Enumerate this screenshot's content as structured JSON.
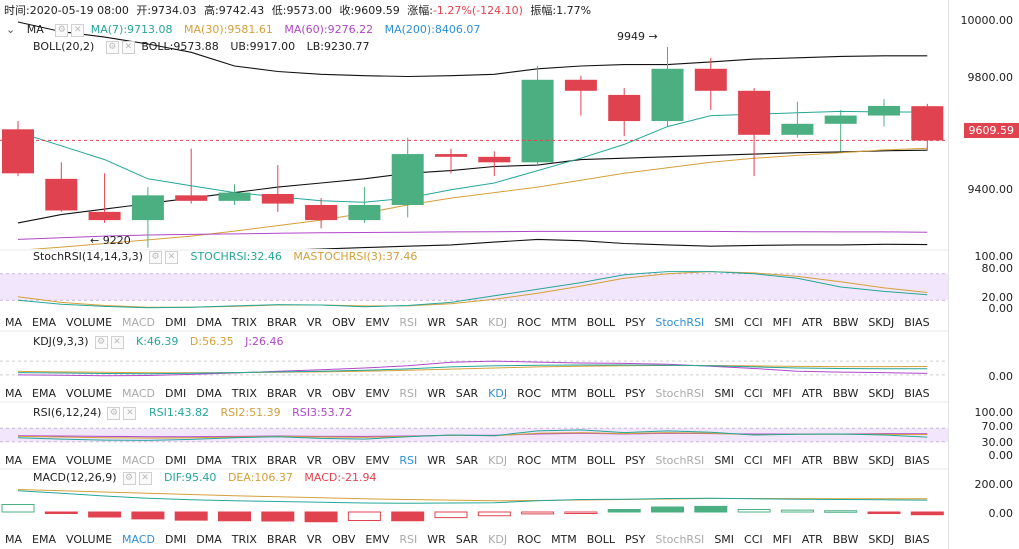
{
  "header": {
    "time_label": "时间:",
    "time": "2020-05-19 08:00",
    "open_label": "开:",
    "open": "9734.03",
    "high_label": "高:",
    "high": "9742.43",
    "low_label": "低:",
    "low": "9573.00",
    "close_label": "收:",
    "close": "9609.59",
    "change_label": "涨幅:",
    "change": "-1.27%(-124.10)",
    "amplitude_label": "振幅:",
    "amplitude": "1.77%"
  },
  "ma_line": {
    "name": "MA",
    "ma7": "MA(7):9713.08",
    "ma30": "MA(30):9581.61",
    "ma60": "MA(60):9276.22",
    "ma200": "MA(200):8406.07"
  },
  "boll_line": {
    "name": "BOLL(20,2)",
    "boll": "BOLL:9573.88",
    "ub": "UB:9917.00",
    "lb": "LB:9230.77"
  },
  "annotations": {
    "high_mark": "9949 →",
    "low_mark": "← 9220"
  },
  "price_axis": [
    "10000.00",
    "9800.00",
    "9400.00"
  ],
  "current_price": "9609.59",
  "stochrsi": {
    "title": "StochRSI(14,14,3,3)",
    "v1": "STOCHRSI:32.46",
    "v2": "MASTOCHRSI(3):37.46",
    "axis": [
      "100.00",
      "80.00",
      "20.00",
      "0.00"
    ]
  },
  "kdj": {
    "title": "KDJ(9,3,3)",
    "k": "K:46.39",
    "d": "D:56.35",
    "j": "J:26.46",
    "axis": [
      "0.00"
    ]
  },
  "rsi": {
    "title": "RSI(6,12,24)",
    "r1": "RSI1:43.82",
    "r2": "RSI2:51.39",
    "r3": "RSI3:53.72",
    "axis": [
      "100.00",
      "70.00",
      "30.00",
      "0.00"
    ]
  },
  "macd": {
    "title": "MACD(12,26,9)",
    "dif": "DIF:95.40",
    "dea": "DEA:106.37",
    "macd": "MACD:-21.94",
    "axis": [
      "200.00",
      "0.00"
    ]
  },
  "tab_labels": [
    "MA",
    "EMA",
    "VOLUME",
    "MACD",
    "DMI",
    "DMA",
    "TRIX",
    "BRAR",
    "VR",
    "OBV",
    "EMV",
    "RSI",
    "WR",
    "SAR",
    "KDJ",
    "ROC",
    "MTM",
    "BOLL",
    "PSY",
    "StochRSI",
    "SMI",
    "CCI",
    "MFI",
    "ATR",
    "BBW",
    "SKDJ",
    "BIAS"
  ],
  "tab_states": {
    "row1": {
      "active": "StochRSI",
      "dim": [
        "MACD",
        "RSI",
        "KDJ"
      ]
    },
    "row2": {
      "active": "KDJ",
      "dim": [
        "MACD",
        "RSI",
        "StochRSI"
      ]
    },
    "row3": {
      "active": "RSI",
      "dim": [
        "MACD",
        "KDJ",
        "StochRSI"
      ]
    },
    "row4": {
      "active": "MACD",
      "dim": [
        "RSI",
        "KDJ",
        "StochRSI"
      ]
    }
  },
  "colors": {
    "up": "#4caf82",
    "down": "#e0434f",
    "ma7": "#26a69a",
    "ma30": "#d4a03a",
    "ma60": "#b048c8",
    "ma200": "#2f8fd6",
    "boll": "#111111",
    "active_tab": "#2f8fd6"
  },
  "chart_data": {
    "type": "candlestick",
    "candles": [
      {
        "o": 9650,
        "h": 9680,
        "l": 9480,
        "c": 9490
      },
      {
        "o": 9470,
        "h": 9530,
        "l": 9350,
        "c": 9355
      },
      {
        "o": 9350,
        "h": 9490,
        "l": 9310,
        "c": 9320
      },
      {
        "o": 9320,
        "h": 9440,
        "l": 9220,
        "c": 9410
      },
      {
        "o": 9410,
        "h": 9580,
        "l": 9380,
        "c": 9390
      },
      {
        "o": 9390,
        "h": 9450,
        "l": 9375,
        "c": 9420
      },
      {
        "o": 9415,
        "h": 9520,
        "l": 9350,
        "c": 9380
      },
      {
        "o": 9375,
        "h": 9400,
        "l": 9290,
        "c": 9320
      },
      {
        "o": 9320,
        "h": 9440,
        "l": 9310,
        "c": 9375
      },
      {
        "o": 9375,
        "h": 9620,
        "l": 9330,
        "c": 9560
      },
      {
        "o": 9560,
        "h": 9580,
        "l": 9490,
        "c": 9550
      },
      {
        "o": 9550,
        "h": 9570,
        "l": 9480,
        "c": 9530
      },
      {
        "o": 9530,
        "h": 9880,
        "l": 9520,
        "c": 9830
      },
      {
        "o": 9830,
        "h": 9845,
        "l": 9700,
        "c": 9790
      },
      {
        "o": 9775,
        "h": 9800,
        "l": 9625,
        "c": 9680
      },
      {
        "o": 9680,
        "h": 9949,
        "l": 9660,
        "c": 9870
      },
      {
        "o": 9870,
        "h": 9910,
        "l": 9720,
        "c": 9790
      },
      {
        "o": 9790,
        "h": 9800,
        "l": 9480,
        "c": 9630
      },
      {
        "o": 9630,
        "h": 9750,
        "l": 9620,
        "c": 9670
      },
      {
        "o": 9670,
        "h": 9720,
        "l": 9570,
        "c": 9700
      },
      {
        "o": 9700,
        "h": 9760,
        "l": 9660,
        "c": 9735
      },
      {
        "o": 9734.03,
        "h": 9742.43,
        "l": 9573,
        "c": 9609.59
      }
    ],
    "ma7": [
      9640,
      9590,
      9540,
      9470,
      9445,
      9420,
      9405,
      9390,
      9385,
      9400,
      9430,
      9455,
      9500,
      9545,
      9595,
      9660,
      9700,
      9705,
      9710,
      9715,
      9713,
      9713
    ],
    "ma30": [
      9210,
      9222,
      9235,
      9248,
      9262,
      9280,
      9300,
      9320,
      9345,
      9375,
      9400,
      9420,
      9440,
      9465,
      9490,
      9510,
      9530,
      9545,
      9555,
      9565,
      9575,
      9581
    ],
    "ma60": [
      9250,
      9256,
      9262,
      9266,
      9268,
      9270,
      9272,
      9274,
      9275,
      9276,
      9277,
      9278,
      9279,
      9279,
      9279,
      9279,
      9279,
      9278,
      9278,
      9277,
      9277,
      9276
    ],
    "boll_ub": [
      10040,
      10005,
      9985,
      9960,
      9930,
      9880,
      9860,
      9850,
      9845,
      9842,
      9845,
      9850,
      9870,
      9880,
      9885,
      9885,
      9895,
      9905,
      9910,
      9915,
      9917,
      9917
    ],
    "boll_mid": [
      9310,
      9340,
      9360,
      9380,
      9400,
      9420,
      9440,
      9455,
      9470,
      9490,
      9500,
      9515,
      9520,
      9540,
      9545,
      9550,
      9555,
      9560,
      9565,
      9568,
      9572,
      9574
    ],
    "boll_lb": [
      9200,
      9195,
      9190,
      9200,
      9210,
      9212,
      9210,
      9215,
      9220,
      9225,
      9230,
      9240,
      9250,
      9245,
      9235,
      9230,
      9225,
      9228,
      9230,
      9230,
      9232,
      9231
    ],
    "ylim": [
      9215,
      10040
    ],
    "stochrsi_k": [
      20,
      11,
      6,
      3,
      4,
      7,
      10,
      9,
      5,
      8,
      15,
      30,
      45,
      60,
      78,
      85,
      85,
      80,
      70,
      50,
      40,
      32.46
    ],
    "stochrsi_d": [
      28,
      15,
      8,
      4,
      4,
      6,
      9,
      9,
      7,
      7,
      12,
      22,
      36,
      52,
      70,
      80,
      85,
      82,
      74,
      62,
      48,
      37.46
    ],
    "kdj_k": [
      30,
      28,
      26,
      25,
      27,
      30,
      33,
      36,
      40,
      46,
      55,
      60,
      62,
      63,
      63,
      62,
      60,
      55,
      50,
      48,
      47,
      46.39
    ],
    "kdj_d": [
      35,
      33,
      31,
      29,
      29,
      30,
      31,
      33,
      36,
      40,
      45,
      50,
      55,
      58,
      60,
      61,
      61,
      59,
      57,
      56,
      56,
      56.35
    ],
    "kdj_j": [
      20,
      18,
      16,
      17,
      22,
      28,
      36,
      42,
      50,
      60,
      75,
      80,
      76,
      72,
      70,
      66,
      58,
      48,
      36,
      32,
      30,
      26.46
    ],
    "rsi1": [
      42,
      38,
      35,
      34,
      37,
      42,
      45,
      40,
      38,
      45,
      50,
      48,
      62,
      65,
      57,
      62,
      58,
      50,
      52,
      53,
      50,
      43.82
    ],
    "rsi2": [
      46,
      44,
      42,
      41,
      42,
      44,
      46,
      44,
      43,
      46,
      49,
      48,
      55,
      57,
      54,
      57,
      55,
      51,
      52,
      52,
      52,
      51.39
    ],
    "rsi3": [
      48,
      47,
      46,
      45,
      45,
      46,
      47,
      46,
      46,
      47,
      49,
      49,
      53,
      55,
      53,
      55,
      54,
      53,
      53,
      53,
      54,
      53.72
    ],
    "macd_dif": [
      170,
      150,
      128,
      110,
      98,
      90,
      84,
      78,
      72,
      70,
      72,
      74,
      90,
      100,
      102,
      108,
      110,
      106,
      102,
      100,
      98,
      95.4
    ],
    "macd_dea": [
      180,
      170,
      160,
      150,
      140,
      130,
      122,
      114,
      106,
      100,
      95,
      90,
      92,
      96,
      100,
      104,
      108,
      108,
      107,
      106,
      106,
      106.37
    ],
    "macd_hist": [
      60,
      -10,
      -40,
      -55,
      -65,
      -70,
      -72,
      -78,
      -68,
      -70,
      -45,
      -30,
      -15,
      -10,
      20,
      40,
      45,
      20,
      15,
      10,
      -5,
      -21.94
    ]
  }
}
